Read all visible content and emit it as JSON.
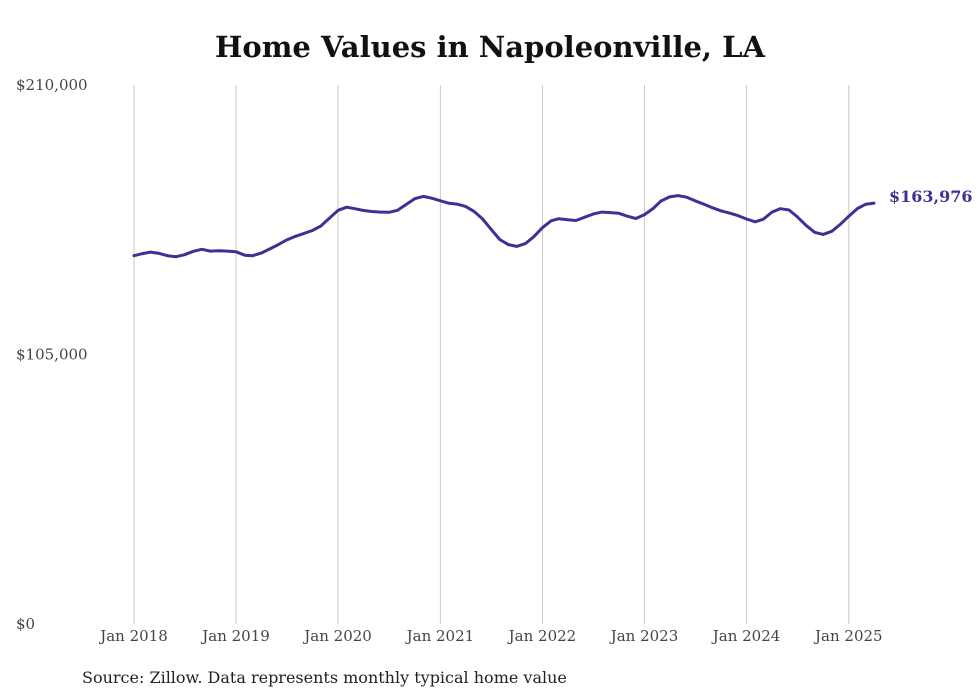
{
  "title": "Home Values in Napoleonville, LA",
  "source": "Source: Zillow. Data represents monthly typical home value",
  "colors": {
    "line": "#3b3394",
    "grid": "#c8c8c8",
    "text": "#444444"
  },
  "chart_data": {
    "type": "line",
    "title": "Home Values in Napoleonville, LA",
    "xlabel": "",
    "ylabel": "",
    "ylim": [
      0,
      210000
    ],
    "yticks": [
      0,
      105000,
      210000
    ],
    "ytick_labels": [
      "$0",
      "$105,000",
      "$210,000"
    ],
    "xticks": [
      "2018-01",
      "2019-01",
      "2020-01",
      "2021-01",
      "2022-01",
      "2023-01",
      "2024-01",
      "2025-01"
    ],
    "xtick_labels": [
      "Jan 2018",
      "Jan 2019",
      "Jan 2020",
      "Jan 2021",
      "Jan 2022",
      "Jan 2023",
      "Jan 2024",
      "Jan 2025"
    ],
    "grid": "vertical",
    "end_label": "$163,976",
    "series": [
      {
        "x": [
          "2018-01",
          "2018-02",
          "2018-03",
          "2018-04",
          "2018-05",
          "2018-06",
          "2018-07",
          "2018-08",
          "2018-09",
          "2018-10",
          "2018-11",
          "2018-12",
          "2019-01",
          "2019-02",
          "2019-03",
          "2019-04",
          "2019-05",
          "2019-06",
          "2019-07",
          "2019-08",
          "2019-09",
          "2019-10",
          "2019-11",
          "2019-12",
          "2020-01",
          "2020-02",
          "2020-03",
          "2020-04",
          "2020-05",
          "2020-06",
          "2020-07",
          "2020-08",
          "2020-09",
          "2020-10",
          "2020-11",
          "2020-12",
          "2021-01",
          "2021-02",
          "2021-03",
          "2021-04",
          "2021-05",
          "2021-06",
          "2021-07",
          "2021-08",
          "2021-09",
          "2021-10",
          "2021-11",
          "2021-12",
          "2022-01",
          "2022-02",
          "2022-03",
          "2022-04",
          "2022-05",
          "2022-06",
          "2022-07",
          "2022-08",
          "2022-09",
          "2022-10",
          "2022-11",
          "2022-12",
          "2023-01",
          "2023-02",
          "2023-03",
          "2023-04",
          "2023-05",
          "2023-06",
          "2023-07",
          "2023-08",
          "2023-09",
          "2023-10",
          "2023-11",
          "2023-12",
          "2024-01",
          "2024-02",
          "2024-03",
          "2024-04",
          "2024-05",
          "2024-06",
          "2024-07",
          "2024-08",
          "2024-09",
          "2024-10",
          "2024-11",
          "2024-12",
          "2025-01",
          "2025-02",
          "2025-03",
          "2025-04"
        ],
        "values": [
          143500,
          144300,
          144900,
          144400,
          143500,
          143100,
          143900,
          145200,
          146000,
          145300,
          145400,
          145300,
          145000,
          143700,
          143500,
          144500,
          146100,
          147800,
          149600,
          151000,
          152200,
          153300,
          155100,
          158100,
          161200,
          162400,
          161800,
          161100,
          160700,
          160500,
          160400,
          161200,
          163500,
          165700,
          166600,
          165900,
          164900,
          163900,
          163600,
          162700,
          160800,
          157800,
          153800,
          149800,
          147800,
          147100,
          148200,
          150900,
          154400,
          157100,
          157900,
          157500,
          157200,
          158500,
          159700,
          160500,
          160300,
          160000,
          158900,
          158000,
          159500,
          161900,
          164800,
          166400,
          166900,
          166300,
          164900,
          163600,
          162200,
          161000,
          160100,
          159100,
          157800,
          156700,
          157700,
          160500,
          161800,
          161300,
          158600,
          155300,
          152600,
          151800,
          153000,
          155700,
          158900,
          161900,
          163500,
          163976
        ]
      }
    ]
  }
}
